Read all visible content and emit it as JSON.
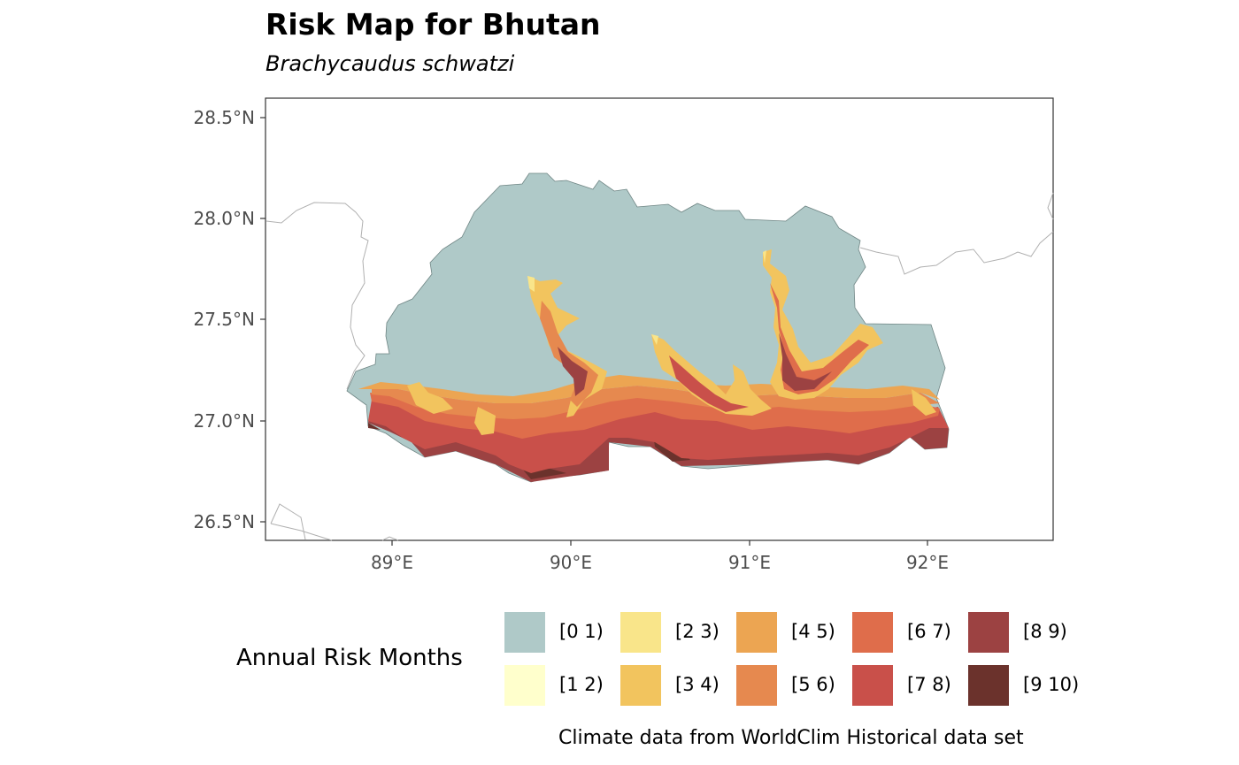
{
  "title": "Risk Map for Bhutan",
  "subtitle": "Brachycaudus schwatzi",
  "y_axis": {
    "ticks": [
      "28.5°N",
      "28.0°N",
      "27.5°N",
      "27.0°N",
      "26.5°N"
    ]
  },
  "x_axis": {
    "ticks": [
      "89°E",
      "90°E",
      "91°E",
      "92°E"
    ]
  },
  "legend": {
    "title": "Annual Risk Months",
    "items": [
      {
        "label": "[0 1)",
        "color": "#afc9c8"
      },
      {
        "label": "[1 2)",
        "color": "#ffffcc"
      },
      {
        "label": "[2 3)",
        "color": "#f9e58a"
      },
      {
        "label": "[3 4)",
        "color": "#f2c45e"
      },
      {
        "label": "[4 5)",
        "color": "#eca552"
      },
      {
        "label": "[5 6)",
        "color": "#e6894f"
      },
      {
        "label": "[6 7)",
        "color": "#df6d4b"
      },
      {
        "label": "[7 8)",
        "color": "#c9504a"
      },
      {
        "label": "[8 9)",
        "color": "#9c4242"
      },
      {
        "label": "[9 10)",
        "color": "#6b322c"
      }
    ]
  },
  "caption": "Climate data from WorldClim Historical data set"
}
